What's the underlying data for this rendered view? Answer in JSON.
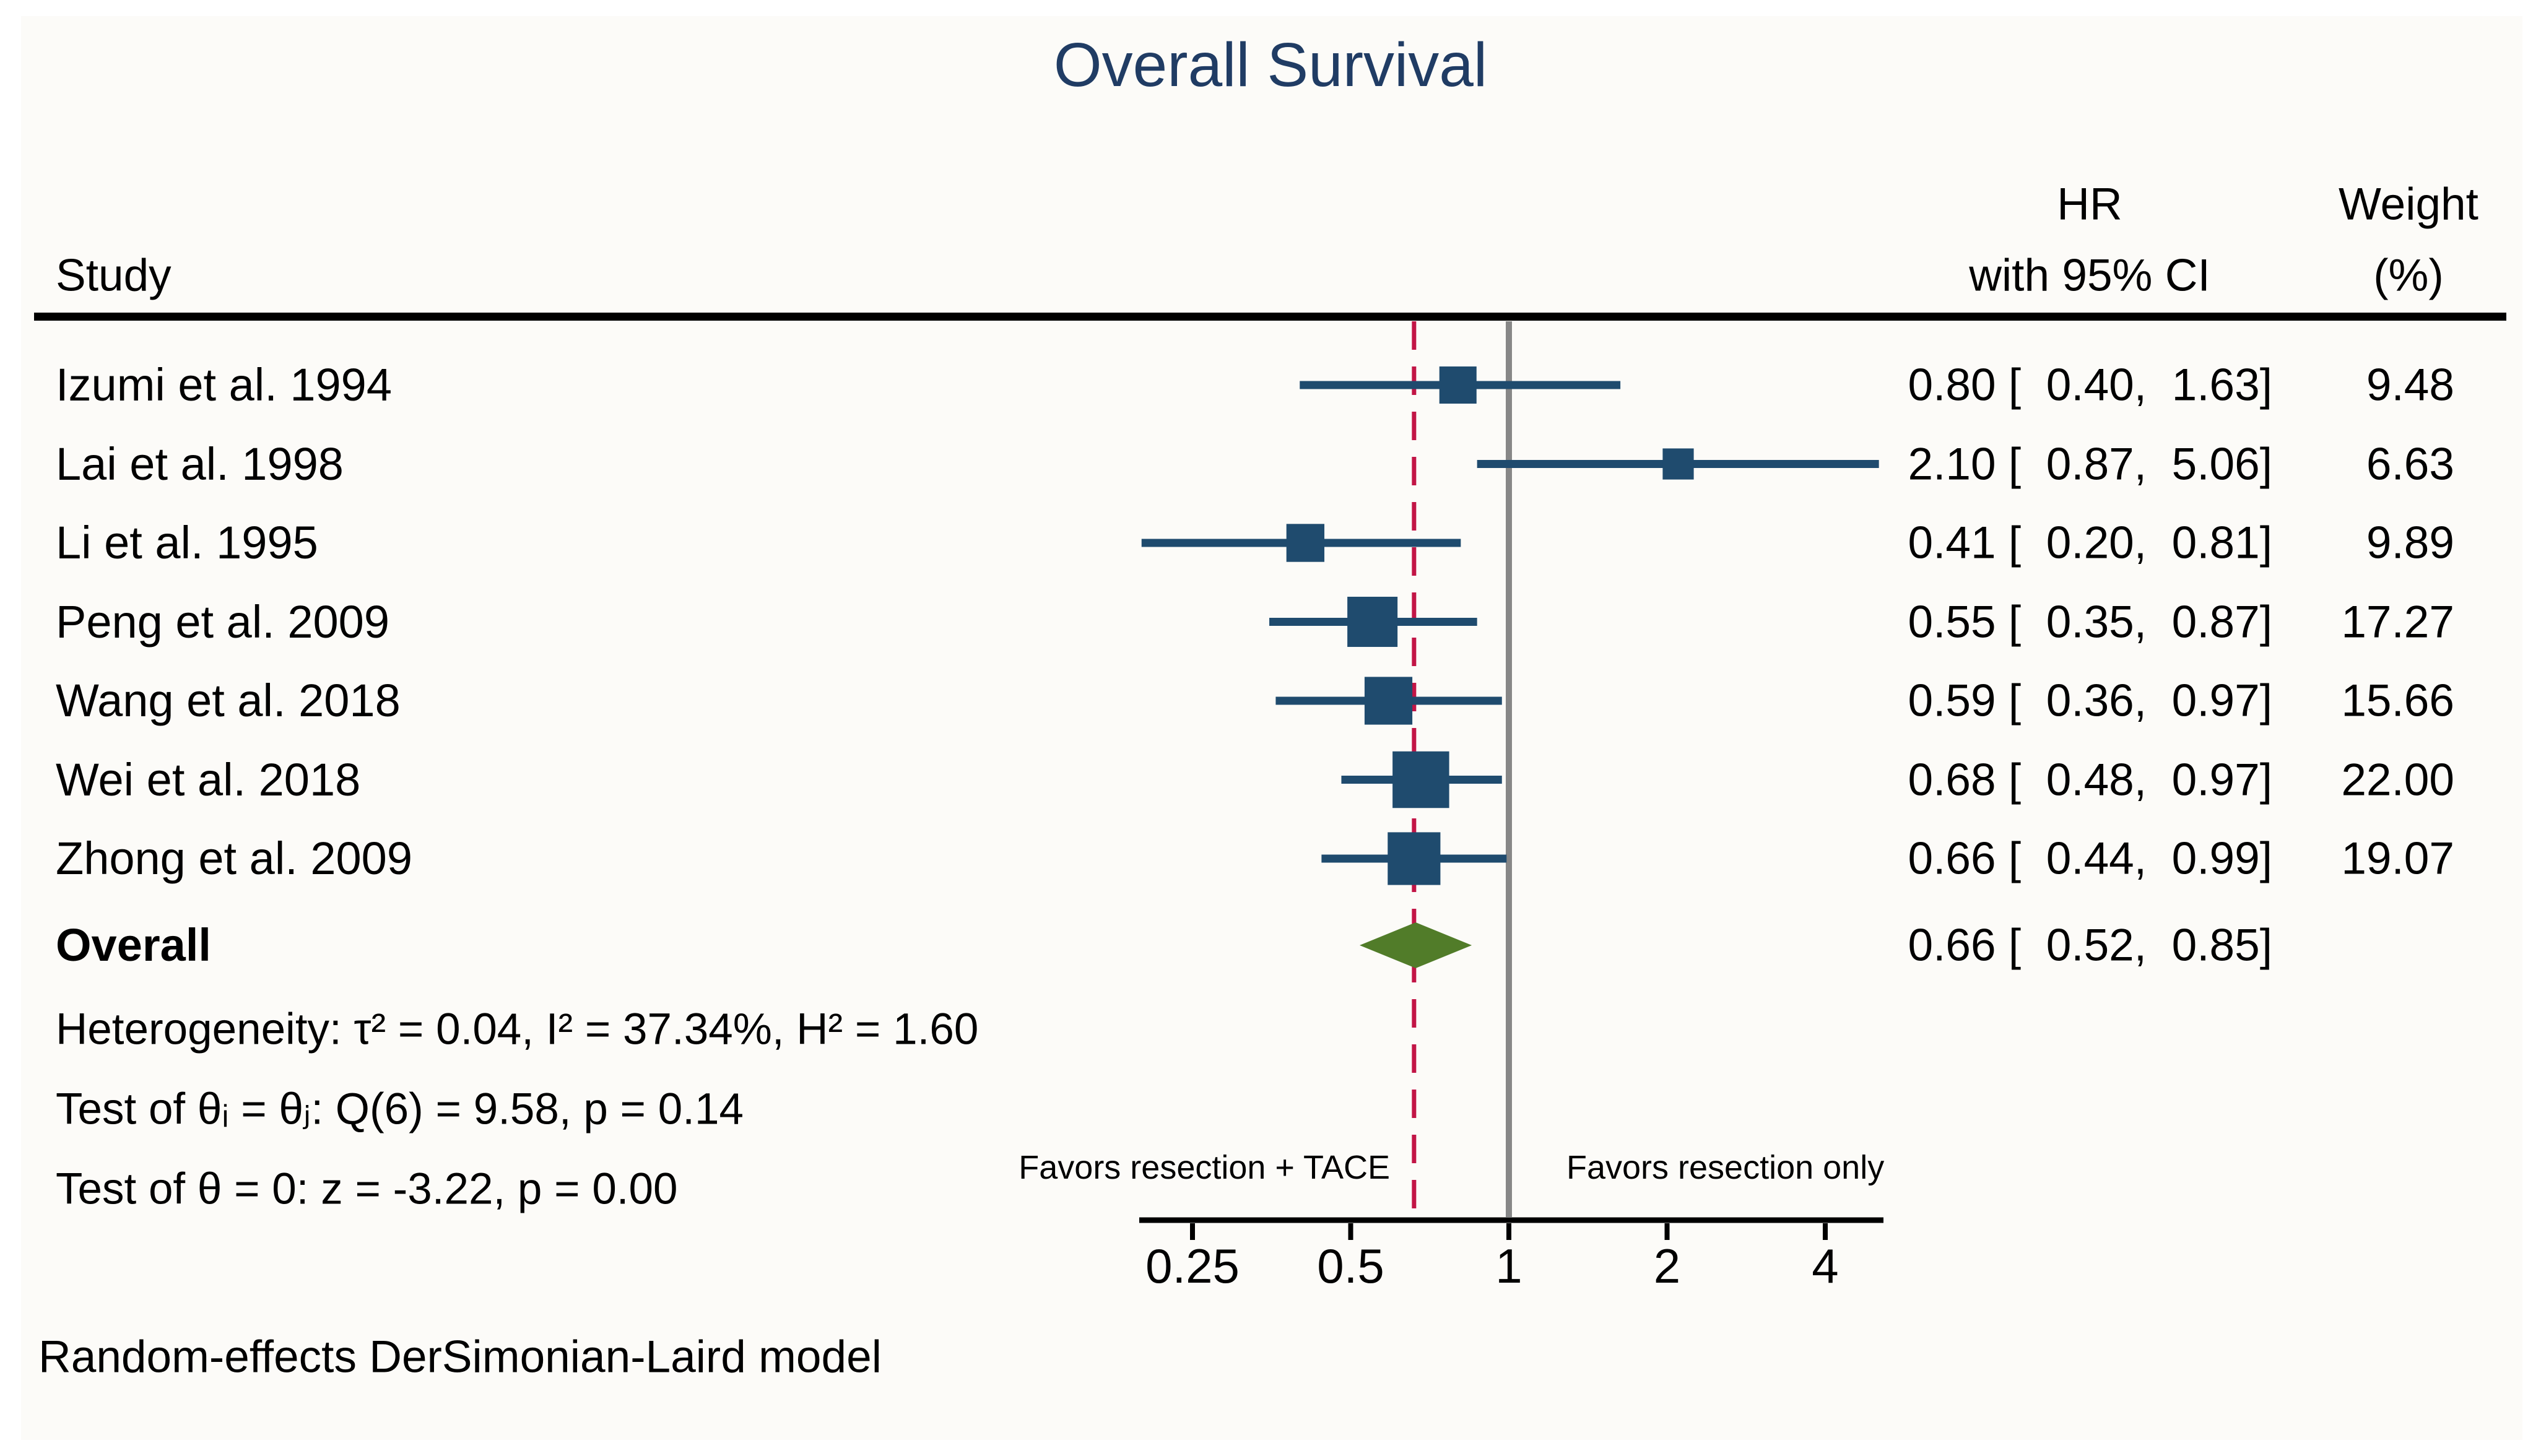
{
  "columns": {
    "study": "Study",
    "hr_line1": "HR",
    "hr_line2": "with 95% CI",
    "weight_line1": "Weight",
    "weight_line2": "(%)"
  },
  "stats": {
    "heterogeneity": "Heterogeneity: τ² = 0.04, I² = 37.34%, H² = 1.60",
    "test_theta_ij": "Test of θᵢ = θⱼ: Q(6) = 9.58, p = 0.14",
    "test_theta_zero": "Test of θ = 0: z = -3.22, p = 0.00"
  },
  "note": "Random-effects DerSimonian-Laird model",
  "colors": {
    "marker_navy": "#1f4b6e",
    "diamond_green": "#517c29",
    "overall_line_crimson": "#c21546",
    "reference_line_gray": "#878787",
    "title_navy": "#203c64",
    "axis_black": "#000000"
  },
  "chart_data": {
    "type": "scatter",
    "subtype": "forest-plot-meta-analysis",
    "title": "Overall Survival",
    "x_scale": "log2",
    "x_ticks": [
      0.25,
      0.5,
      1,
      2,
      4
    ],
    "x_tick_labels": [
      "0.25",
      "0.5",
      "1",
      "2",
      "4"
    ],
    "x_range": [
      0.2,
      5.06
    ],
    "reference_line_x": 1,
    "overall_estimate_line_x": 0.66,
    "favors_left": "Favors resection + TACE",
    "favors_right": "Favors resection only",
    "studies": [
      {
        "label": "Izumi et al. 1994",
        "hr": 0.8,
        "ci_low": 0.4,
        "ci_high": 1.63,
        "weight_pct": 9.48
      },
      {
        "label": "Lai et al. 1998",
        "hr": 2.1,
        "ci_low": 0.87,
        "ci_high": 5.06,
        "weight_pct": 6.63
      },
      {
        "label": "Li et al. 1995",
        "hr": 0.41,
        "ci_low": 0.2,
        "ci_high": 0.81,
        "weight_pct": 9.89
      },
      {
        "label": "Peng et al. 2009",
        "hr": 0.55,
        "ci_low": 0.35,
        "ci_high": 0.87,
        "weight_pct": 17.27
      },
      {
        "label": "Wang et al. 2018",
        "hr": 0.59,
        "ci_low": 0.36,
        "ci_high": 0.97,
        "weight_pct": 15.66
      },
      {
        "label": "Wei et al. 2018",
        "hr": 0.68,
        "ci_low": 0.48,
        "ci_high": 0.97,
        "weight_pct": 22.0
      },
      {
        "label": "Zhong et al. 2009",
        "hr": 0.66,
        "ci_low": 0.44,
        "ci_high": 0.99,
        "weight_pct": 19.07
      }
    ],
    "overall": {
      "label": "Overall",
      "hr": 0.66,
      "ci_low": 0.52,
      "ci_high": 0.85
    }
  }
}
